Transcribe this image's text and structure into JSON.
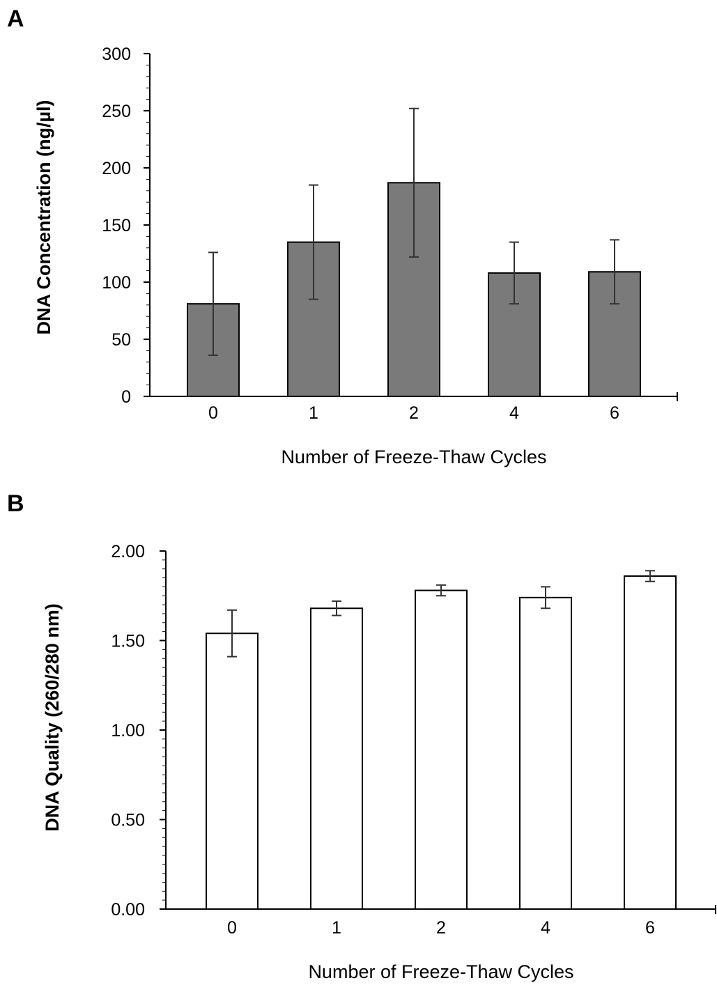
{
  "chart_data": [
    {
      "panel": "A",
      "type": "bar",
      "categories": [
        "0",
        "1",
        "2",
        "4",
        "6"
      ],
      "values": [
        81,
        135,
        187,
        108,
        109
      ],
      "errors": [
        45,
        50,
        65,
        27,
        28
      ],
      "xlabel": "Number of Freeze-Thaw Cycles",
      "ylabel": "DNA Concentration (ng/µl)",
      "ylim": [
        0,
        300
      ],
      "yticks": [
        "0",
        "50",
        "100",
        "150",
        "200",
        "250",
        "300"
      ],
      "bar_color": "#7a7a7a",
      "grid": false
    },
    {
      "panel": "B",
      "type": "bar",
      "categories": [
        "0",
        "1",
        "2",
        "4",
        "6"
      ],
      "values": [
        1.54,
        1.68,
        1.78,
        1.74,
        1.86
      ],
      "errors": [
        0.13,
        0.04,
        0.03,
        0.06,
        0.03
      ],
      "xlabel": "Number of Freeze-Thaw Cycles",
      "ylabel": "DNA Quality (260/280 nm)",
      "ylim": [
        0,
        2
      ],
      "yticks": [
        "0.00",
        "0.50",
        "1.00",
        "1.50",
        "2.00"
      ],
      "bar_color": "#ffffff",
      "grid": false
    }
  ]
}
